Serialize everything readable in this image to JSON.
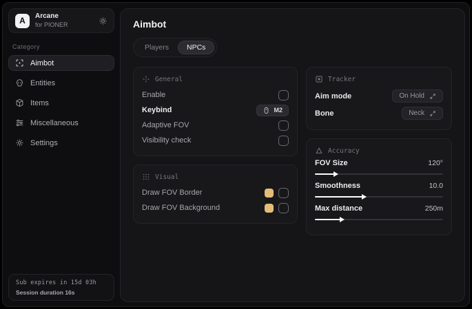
{
  "colors": {
    "accent_swatch": "#e3bd78",
    "window_bg": "#0e0e10",
    "card_bg": "#18181b"
  },
  "sidebar": {
    "brand": {
      "logo_letter": "A",
      "name": "Arcane",
      "subtitle": "for PIONER"
    },
    "category_label": "Category",
    "items": [
      {
        "label": "Aimbot",
        "icon": "crosshair-icon",
        "active": true
      },
      {
        "label": "Entities",
        "icon": "skull-icon",
        "active": false
      },
      {
        "label": "Items",
        "icon": "package-icon",
        "active": false
      },
      {
        "label": "Miscellaneous",
        "icon": "sliders-icon",
        "active": false
      },
      {
        "label": "Settings",
        "icon": "gear-icon",
        "active": false
      }
    ],
    "subscription": {
      "line1": "Sub expires in 15d 03h",
      "line2": "Session duration 16s"
    }
  },
  "main": {
    "title": "Aimbot",
    "tabs": [
      {
        "label": "Players",
        "active": false
      },
      {
        "label": "NPCs",
        "active": true
      }
    ],
    "panels": {
      "general": {
        "title": "General",
        "rows": [
          {
            "label": "Enable",
            "control": "checkbox",
            "checked": false
          },
          {
            "label": "Keybind",
            "control": "keybind",
            "value": "M2"
          },
          {
            "label": "Adaptive FOV",
            "control": "checkbox",
            "checked": false
          },
          {
            "label": "Visibility check",
            "control": "checkbox",
            "checked": false
          }
        ]
      },
      "visual": {
        "title": "Visual",
        "rows": [
          {
            "label": "Draw FOV Border",
            "control": "color-checkbox",
            "color": "#e3bd78",
            "checked": false
          },
          {
            "label": "Draw FOV Background",
            "control": "color-checkbox",
            "color": "#e3bd78",
            "checked": false
          }
        ]
      },
      "tracker": {
        "title": "Tracker",
        "rows": [
          {
            "label": "Aim mode",
            "value": "On Hold"
          },
          {
            "label": "Bone",
            "value": "Neck"
          }
        ]
      },
      "accuracy": {
        "title": "Accuracy",
        "sliders": [
          {
            "label": "FOV Size",
            "value": "120°",
            "percent": 15
          },
          {
            "label": "Smoothness",
            "value": "10.0",
            "percent": 37
          },
          {
            "label": "Max distance",
            "value": "250m",
            "percent": 20
          }
        ]
      }
    }
  }
}
